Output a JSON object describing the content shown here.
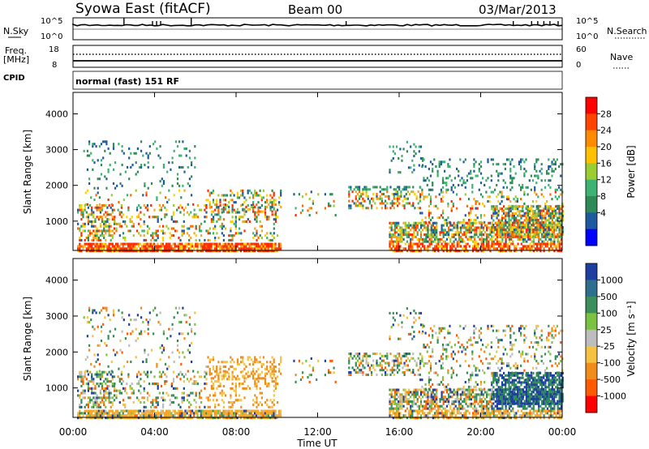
{
  "header": {
    "title": "Syowa East (fitACF)",
    "beam": "Beam 00",
    "date": "03/Mar/2013"
  },
  "noise_panel": {
    "left_label": "N.Sky",
    "left_ticks": [
      "10^5",
      "10^0"
    ],
    "right_label": "N.Search",
    "right_ticks": [
      "10^5",
      "10^0"
    ],
    "spike_hours": [
      2.5,
      3.9,
      4.1,
      4.3,
      5.8,
      13.4,
      21.6,
      22.5,
      22.8,
      23.1,
      23.4,
      23.8
    ]
  },
  "freq_panel": {
    "left_label": "Freq.",
    "left_unit": "[MHz]",
    "left_ticks": [
      "18",
      "8"
    ],
    "right_label": "Nave",
    "right_ticks": [
      "60",
      "0"
    ],
    "cpid_label": "CPID",
    "cpid_text": "normal (fast) 151 RF"
  },
  "chart_data": [
    {
      "type": "heatmap",
      "name": "power",
      "xlabel": "",
      "ylabel": "Slant Range [km]",
      "xlim_hours": [
        0,
        24
      ],
      "ylim": [
        180,
        4600
      ],
      "y_ticks": [
        "1000",
        "2000",
        "3000",
        "4000"
      ],
      "colorbar_label": "Power [dB]",
      "colorbar_ticks": [
        "28",
        "24",
        "20",
        "16",
        "12",
        "8",
        "4"
      ],
      "colorbar_colors": [
        "#ff0000",
        "#ff4500",
        "#ff8c00",
        "#ffc000",
        "#9acd32",
        "#3cb371",
        "#2e8b57",
        "#1e5aa0",
        "#0000ff"
      ],
      "colors": {
        "high": "#ff2a00",
        "mid": "#f5a623",
        "low": "#3cb371",
        "vlow": "#1e5aa0"
      }
    },
    {
      "type": "heatmap",
      "name": "velocity",
      "xlabel": "Time UT",
      "ylabel": "Slant Range [km]",
      "xlim_hours": [
        0,
        24
      ],
      "ylim": [
        180,
        4600
      ],
      "y_ticks": [
        "1000",
        "2000",
        "3000",
        "4000"
      ],
      "x_ticks": [
        "00:00",
        "04:00",
        "08:00",
        "12:00",
        "16:00",
        "20:00",
        "00:00"
      ],
      "colorbar_label": "Velocity [m s⁻¹]",
      "colorbar_ticks": [
        "1000",
        "500",
        "100",
        "25",
        "-25",
        "-100",
        "-500",
        "-1000"
      ],
      "colorbar_colors": [
        "#1e3fa0",
        "#2e6e8e",
        "#3a8f5a",
        "#7cc242",
        "#bdbdbd",
        "#f5c342",
        "#f08c1a",
        "#ff5a00",
        "#ff0000"
      ],
      "colors": {
        "toward": "#2e8b57",
        "neutral": "#bdbdbd",
        "away": "#f08c1a",
        "fast_away": "#ff3a00",
        "fast_toward": "#1e3fa0"
      }
    }
  ]
}
